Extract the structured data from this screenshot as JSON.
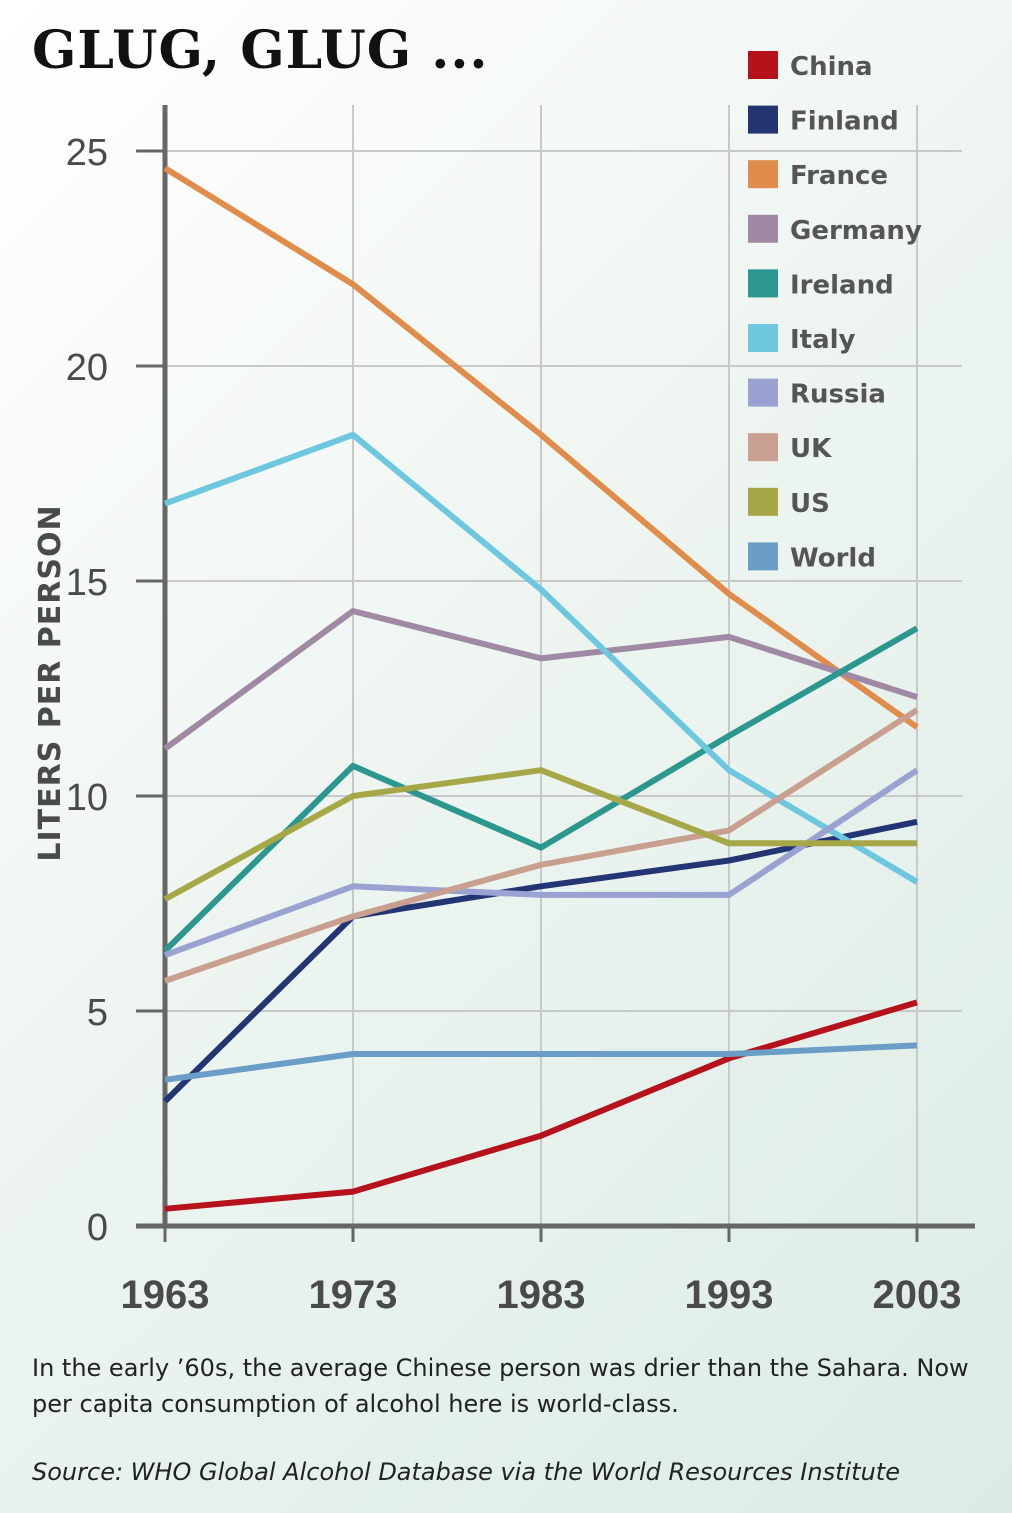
{
  "title": "GLUG, GLUG ...",
  "caption": "In the early ’60s, the average Chinese person was drier than the Sahara. Now per capita consumption of alcohol here is world-class.",
  "source": "Source: WHO Global Alcohol Database via the World Resources Institute",
  "chart_data": {
    "type": "line",
    "title": "GLUG, GLUG ...",
    "xlabel": "",
    "ylabel": "LITERS PER PERSON",
    "x": [
      "1963",
      "1973",
      "1983",
      "1993",
      "2003"
    ],
    "ylim": [
      0,
      25
    ],
    "yticks": [
      "0",
      "5",
      "10",
      "15",
      "20",
      "25"
    ],
    "grid": true,
    "legend_position": "top-right",
    "series": [
      {
        "name": "China",
        "color": "#b5121b",
        "values": [
          0.4,
          0.8,
          2.1,
          3.9,
          5.2
        ]
      },
      {
        "name": "Finland",
        "color": "#233572",
        "values": [
          2.9,
          7.2,
          7.9,
          8.5,
          9.4
        ]
      },
      {
        "name": "France",
        "color": "#e08c4a",
        "values": [
          24.6,
          21.9,
          18.4,
          14.7,
          11.6
        ]
      },
      {
        "name": "Germany",
        "color": "#a08aa3",
        "values": [
          11.1,
          14.3,
          13.2,
          13.7,
          12.3
        ]
      },
      {
        "name": "Ireland",
        "color": "#2b978e",
        "values": [
          6.4,
          10.7,
          8.8,
          11.4,
          13.9
        ]
      },
      {
        "name": "Italy",
        "color": "#6dc7df",
        "values": [
          16.8,
          18.4,
          14.8,
          10.6,
          8.0
        ]
      },
      {
        "name": "Russia",
        "color": "#9aa2d2",
        "values": [
          6.3,
          7.9,
          7.7,
          7.7,
          10.6
        ]
      },
      {
        "name": "UK",
        "color": "#c9a08f",
        "values": [
          5.7,
          7.2,
          8.4,
          9.2,
          12.0
        ]
      },
      {
        "name": "US",
        "color": "#a6a848",
        "values": [
          7.6,
          10.0,
          10.6,
          8.9,
          8.9
        ]
      },
      {
        "name": "World",
        "color": "#6a9ec7",
        "values": [
          3.4,
          4.0,
          4.0,
          4.0,
          4.2
        ]
      }
    ]
  }
}
